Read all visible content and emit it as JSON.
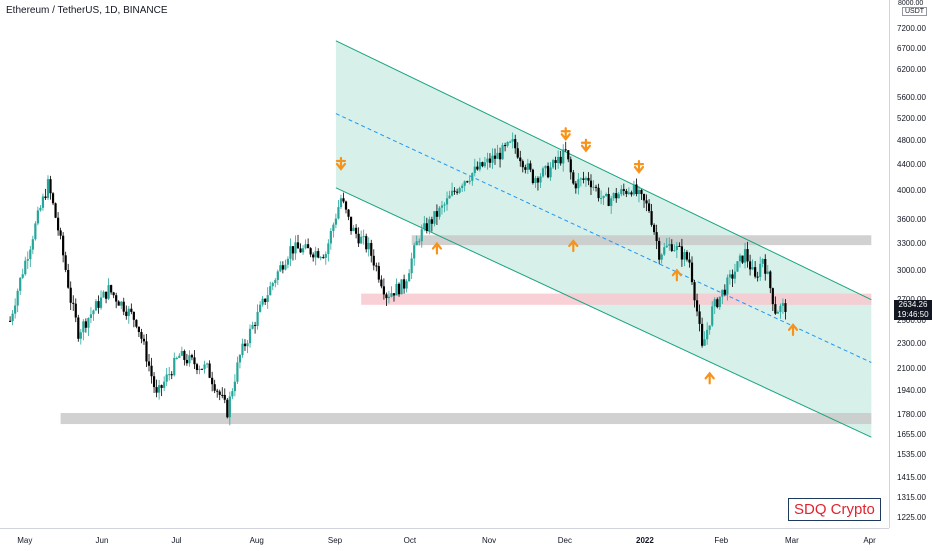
{
  "header": {
    "title": "Ethereum / TetherUS, 1D, BINANCE"
  },
  "price_axis": {
    "unit": "USDT",
    "top_label": "8000.00",
    "labels": [
      "7200.00",
      "6700.00",
      "6200.00",
      "5600.00",
      "5200.00",
      "4800.00",
      "4400.00",
      "4000.00",
      "3600.00",
      "3300.00",
      "3000.00",
      "2700.00",
      "2500.00",
      "2300.00",
      "2100.00",
      "1940.00",
      "1780.00",
      "1655.00",
      "1535.00",
      "1415.00",
      "1315.00",
      "1225.00"
    ]
  },
  "time_axis": {
    "labels": [
      "May",
      "Jun",
      "Jul",
      "Aug",
      "Sep",
      "Oct",
      "Nov",
      "Dec",
      "2022",
      "Feb",
      "Mar",
      "Apr"
    ]
  },
  "last_price": {
    "price": "2634.26",
    "countdown": "19:46:50"
  },
  "watermark": "SDQ Crypto",
  "colors": {
    "up": "#26a69a",
    "down": "#000000",
    "channel_fill": "#d7f1ea",
    "channel_line": "#1ba37f",
    "midline": "#2196f3",
    "zone_gray": "#c9c9c9",
    "zone_red": "#f8c8cf",
    "arrow": "#f7931a"
  },
  "chart_data": {
    "type": "candlestick",
    "title": "Ethereum / TetherUS, 1D, BINANCE",
    "xlabel": "",
    "ylabel": "",
    "y_scale": "log",
    "ylim": [
      1180,
      8000
    ],
    "x_range": [
      "2021-04-21",
      "2022-04-08"
    ],
    "grid": false,
    "legend": "none",
    "series": [
      {
        "name": "close",
        "points": [
          [
            "2021-04-25",
            2500
          ],
          [
            "2021-05-03",
            3300
          ],
          [
            "2021-05-10",
            4100
          ],
          [
            "2021-05-12",
            3800
          ],
          [
            "2021-05-19",
            2700
          ],
          [
            "2021-05-22",
            2400
          ],
          [
            "2021-06-03",
            2800
          ],
          [
            "2021-06-14",
            2500
          ],
          [
            "2021-06-22",
            1900
          ],
          [
            "2021-07-01",
            2200
          ],
          [
            "2021-07-12",
            2100
          ],
          [
            "2021-07-20",
            1800
          ],
          [
            "2021-07-25",
            2200
          ],
          [
            "2021-08-01",
            2550
          ],
          [
            "2021-08-14",
            3250
          ],
          [
            "2021-08-28",
            3200
          ],
          [
            "2021-09-03",
            3900
          ],
          [
            "2021-09-07",
            3500
          ],
          [
            "2021-09-14",
            3250
          ],
          [
            "2021-09-21",
            2750
          ],
          [
            "2021-09-28",
            2850
          ],
          [
            "2021-10-04",
            3400
          ],
          [
            "2021-10-14",
            3800
          ],
          [
            "2021-10-21",
            4150
          ],
          [
            "2021-10-26",
            4300
          ],
          [
            "2021-11-04",
            4550
          ],
          [
            "2021-11-10",
            4750
          ],
          [
            "2021-11-18",
            4200
          ],
          [
            "2021-11-24",
            4300
          ],
          [
            "2021-12-01",
            4600
          ],
          [
            "2021-12-04",
            4100
          ],
          [
            "2021-12-10",
            4200
          ],
          [
            "2021-12-16",
            3850
          ],
          [
            "2021-12-27",
            4050
          ],
          [
            "2022-01-03",
            3750
          ],
          [
            "2022-01-07",
            3200
          ],
          [
            "2022-01-12",
            3300
          ],
          [
            "2022-01-19",
            3100
          ],
          [
            "2022-01-24",
            2250
          ],
          [
            "2022-01-28",
            2600
          ],
          [
            "2022-02-04",
            2900
          ],
          [
            "2022-02-10",
            3200
          ],
          [
            "2022-02-14",
            2900
          ],
          [
            "2022-02-17",
            3150
          ],
          [
            "2022-02-22",
            2600
          ],
          [
            "2022-02-26",
            2634
          ]
        ]
      }
    ],
    "channel": {
      "upper": [
        [
          "2021-09-01",
          6900
        ],
        [
          "2022-04-01",
          2700
        ]
      ],
      "lower": [
        [
          "2021-09-01",
          4050
        ],
        [
          "2022-04-01",
          1640
        ]
      ],
      "mid": [
        [
          "2021-09-01",
          5300
        ],
        [
          "2022-04-01",
          2150
        ]
      ]
    },
    "zones": [
      {
        "price_range": [
          1720,
          1790
        ],
        "x_range": [
          "2021-05-15",
          "2022-04-01"
        ],
        "color": "gray"
      },
      {
        "price_range": [
          3290,
          3410
        ],
        "x_range": [
          "2021-10-01",
          "2022-04-01"
        ],
        "color": "gray"
      },
      {
        "price_range": [
          2650,
          2760
        ],
        "x_range": [
          "2021-09-11",
          "2022-04-01"
        ],
        "color": "red"
      }
    ],
    "markers": [
      {
        "date": "2021-09-03",
        "price": 4400,
        "dir": "down"
      },
      {
        "date": "2021-10-11",
        "price": 3250,
        "dir": "up"
      },
      {
        "date": "2021-12-01",
        "price": 4900,
        "dir": "down"
      },
      {
        "date": "2021-12-04",
        "price": 3280,
        "dir": "up"
      },
      {
        "date": "2021-12-09",
        "price": 4700,
        "dir": "down"
      },
      {
        "date": "2021-12-30",
        "price": 4350,
        "dir": "down"
      },
      {
        "date": "2022-01-14",
        "price": 2950,
        "dir": "up"
      },
      {
        "date": "2022-01-27",
        "price": 2030,
        "dir": "up"
      },
      {
        "date": "2022-03-01",
        "price": 2420,
        "dir": "up"
      }
    ]
  }
}
